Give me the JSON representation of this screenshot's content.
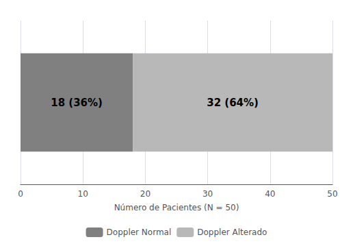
{
  "chart_data": {
    "type": "bar",
    "orientation": "horizontal",
    "stacked": true,
    "xlabel": "Número de Pacientes (N = 50)",
    "categories": [
      null
    ],
    "series": [
      {
        "name": "Doppler Normal",
        "color": "#808080",
        "values": [
          18
        ],
        "value_labels": [
          "18 (36%)"
        ]
      },
      {
        "name": "Doppler Alterado",
        "color": "#b8b8b8",
        "values": [
          32
        ],
        "value_labels": [
          "32 (64%)"
        ]
      }
    ],
    "xlim": [
      0,
      50
    ],
    "xticks": [
      0,
      10,
      20,
      30,
      40,
      50
    ],
    "grid": true,
    "legend": "bottom",
    "data_labels": true,
    "tick_labels": "x"
  }
}
